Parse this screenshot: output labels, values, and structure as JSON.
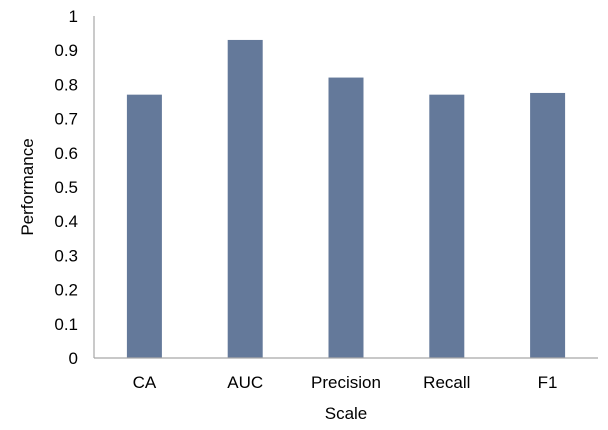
{
  "chart_data": {
    "type": "bar",
    "title": "",
    "xlabel": "Scale",
    "ylabel": "Performance",
    "categories": [
      "CA",
      "AUC",
      "Precision",
      "Recall",
      "F1"
    ],
    "values": [
      0.77,
      0.93,
      0.82,
      0.77,
      0.775
    ],
    "ylim": [
      0,
      1
    ],
    "yticks": [
      "0",
      "0.1",
      "0.2",
      "0.3",
      "0.4",
      "0.5",
      "0.6",
      "0.7",
      "0.8",
      "0.9",
      "1"
    ],
    "grid": false,
    "legend": "none",
    "bar_color": "#64799A",
    "axis_color": "#A6A6A6"
  }
}
